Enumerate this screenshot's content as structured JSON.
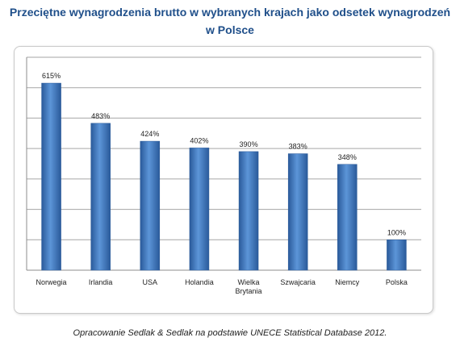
{
  "title_line1": "Przeciętne wynagrodzenia brutto w wybranych krajach jako odsetek wynagrodzeń",
  "title_line2": "w Polsce",
  "source": "Opracowanie Sedlak & Sedlak na podstawie UNECE Statistical Database 2012.",
  "colors": {
    "bar": "#3a78c4",
    "bar_dark": "#2a5a9a",
    "bar_light": "#5c95d8",
    "title": "#1f4f8a",
    "grid": "#a6a6a6"
  },
  "chart_data": {
    "type": "bar",
    "categories": [
      [
        "Norwegia"
      ],
      [
        "Irlandia"
      ],
      [
        "USA"
      ],
      [
        "Holandia"
      ],
      [
        "Wielka",
        "Brytania"
      ],
      [
        "Szwajcaria"
      ],
      [
        "Niemcy"
      ],
      [
        "Polska"
      ]
    ],
    "values": [
      615,
      483,
      424,
      402,
      390,
      383,
      348,
      100
    ],
    "data_labels": [
      "615%",
      "483%",
      "424%",
      "402%",
      "390%",
      "383%",
      "348%",
      "100%"
    ],
    "ylim": [
      0,
      700
    ],
    "grid": true,
    "legend": false
  }
}
